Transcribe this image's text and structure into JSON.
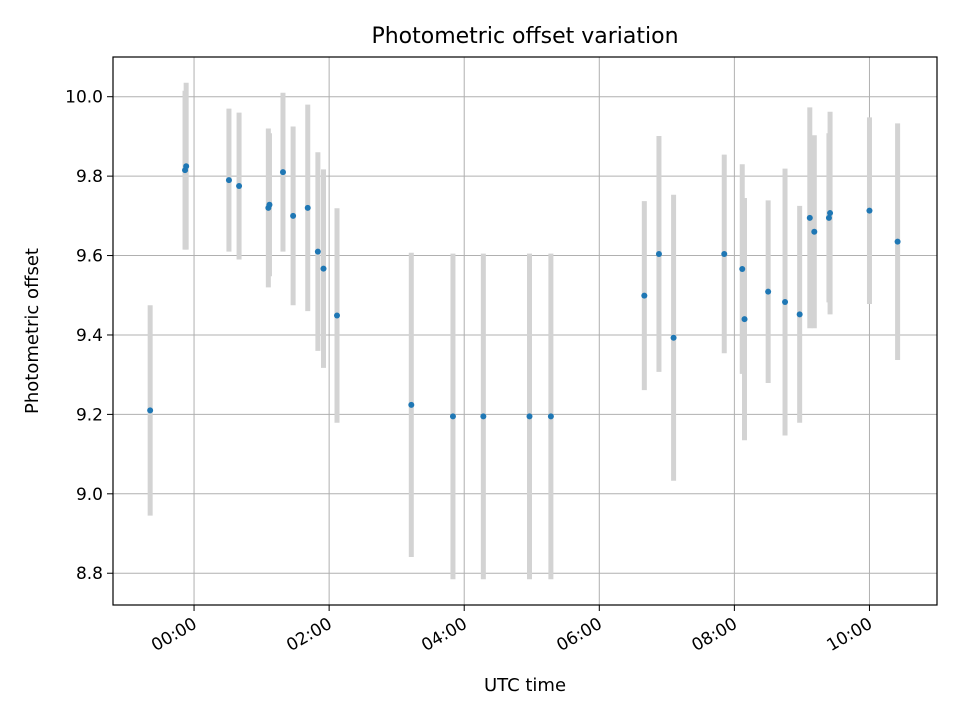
{
  "chart_data": {
    "type": "scatter",
    "title": "Photometric offset variation",
    "xlabel": "UTC time",
    "ylabel": "Photometric offset",
    "x_unit": "hours (UTC, clock time)",
    "xlim": [
      "-1.2",
      "11.0"
    ],
    "ylim": [
      8.72,
      10.1
    ],
    "grid": true,
    "x_ticks": [
      {
        "value": "00:00",
        "label": "00:00"
      },
      {
        "value": "02:00",
        "label": "02:00"
      },
      {
        "value": "04:00",
        "label": "04:00"
      },
      {
        "value": "06:00",
        "label": "06:00"
      },
      {
        "value": "08:00",
        "label": "08:00"
      },
      {
        "value": "10:00",
        "label": "10:00"
      }
    ],
    "y_ticks": [
      {
        "value": 8.8,
        "label": "8.8"
      },
      {
        "value": 9.0,
        "label": "9.0"
      },
      {
        "value": 9.2,
        "label": "9.2"
      },
      {
        "value": 9.4,
        "label": "9.4"
      },
      {
        "value": 9.6,
        "label": "9.6"
      },
      {
        "value": 9.8,
        "label": "9.8"
      },
      {
        "value": 10.0,
        "label": "10.0"
      }
    ],
    "marker_color": "#1f77b4",
    "errorbar_color": "#d3d3d3",
    "points": [
      {
        "t": "23:21",
        "y": 9.21,
        "err": 0.265
      },
      {
        "t": "23:52",
        "y": 9.815,
        "err": 0.2
      },
      {
        "t": "23:53",
        "y": 9.825,
        "err": 0.21
      },
      {
        "t": "00:31",
        "y": 9.79,
        "err": 0.18
      },
      {
        "t": "00:40",
        "y": 9.775,
        "err": 0.185
      },
      {
        "t": "01:06",
        "y": 9.72,
        "err": 0.2
      },
      {
        "t": "01:07",
        "y": 9.728,
        "err": 0.18
      },
      {
        "t": "01:19",
        "y": 9.81,
        "err": 0.2
      },
      {
        "t": "01:28",
        "y": 9.7,
        "err": 0.225
      },
      {
        "t": "01:41",
        "y": 9.72,
        "err": 0.26
      },
      {
        "t": "01:50",
        "y": 9.61,
        "err": 0.25
      },
      {
        "t": "01:55",
        "y": 9.567,
        "err": 0.25
      },
      {
        "t": "02:07",
        "y": 9.449,
        "err": 0.27
      },
      {
        "t": "03:13",
        "y": 9.224,
        "err": 0.383
      },
      {
        "t": "03:50",
        "y": 9.195,
        "err": 0.41
      },
      {
        "t": "04:17",
        "y": 9.195,
        "err": 0.41
      },
      {
        "t": "04:58",
        "y": 9.195,
        "err": 0.41
      },
      {
        "t": "05:17",
        "y": 9.195,
        "err": 0.41
      },
      {
        "t": "06:40",
        "y": 9.499,
        "err": 0.238
      },
      {
        "t": "06:53",
        "y": 9.604,
        "err": 0.297
      },
      {
        "t": "07:06",
        "y": 9.393,
        "err": 0.36
      },
      {
        "t": "07:51",
        "y": 9.604,
        "err": 0.25
      },
      {
        "t": "08:07",
        "y": 9.566,
        "err": 0.264
      },
      {
        "t": "08:09",
        "y": 9.44,
        "err": 0.305
      },
      {
        "t": "08:30",
        "y": 9.509,
        "err": 0.23
      },
      {
        "t": "08:45",
        "y": 9.483,
        "err": 0.336
      },
      {
        "t": "08:58",
        "y": 9.452,
        "err": 0.273
      },
      {
        "t": "09:07",
        "y": 9.695,
        "err": 0.278
      },
      {
        "t": "09:11",
        "y": 9.66,
        "err": 0.243
      },
      {
        "t": "09:24",
        "y": 9.695,
        "err": 0.213
      },
      {
        "t": "09:25",
        "y": 9.707,
        "err": 0.255
      },
      {
        "t": "10:00",
        "y": 9.713,
        "err": 0.235
      },
      {
        "t": "10:25",
        "y": 9.635,
        "err": 0.298
      }
    ]
  }
}
